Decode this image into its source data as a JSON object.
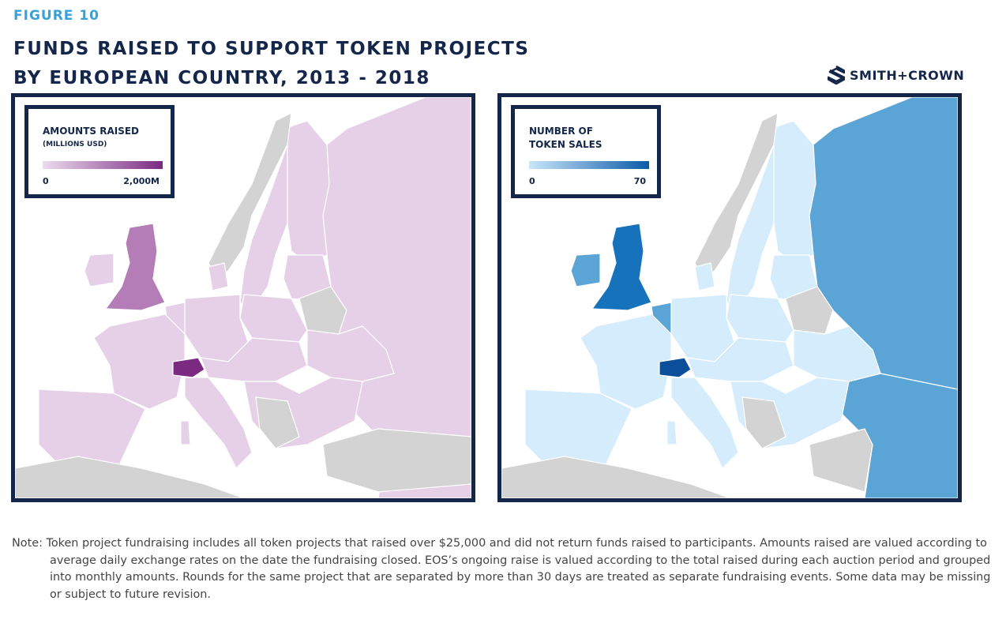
{
  "figure_label": "FIGURE 10",
  "title_line1": "FUNDS RAISED TO SUPPORT TOKEN PROJECTS",
  "title_line2": "BY EUROPEAN COUNTRY, 2013 - 2018",
  "brand": {
    "name": "SMITH+CROWN",
    "icon": "smith-crown-logo-icon"
  },
  "colors": {
    "navy": "#14264a",
    "figure_label": "#3aa0d8",
    "sea": "#ffffff",
    "no_data": "#d3d3d3",
    "purple_low": "#e6d0e8",
    "purple_mid": "#b57db8",
    "purple_high": "#7b2a82",
    "blue_low": "#d4ecfb",
    "blue_mid": "#5aa5d6",
    "blue_high": "#1572bb",
    "blue_max": "#0b4f9a"
  },
  "maps": [
    {
      "id": "amounts",
      "legend": {
        "title": "AMOUNTS RAISED",
        "subtitle": "(MILLIONS USD)",
        "min": "0",
        "max": "2,000M",
        "gradient": [
          "#ecdcee",
          "#7b2a82"
        ]
      },
      "highlights": [
        {
          "country": "Switzerland",
          "level": "high",
          "color": "#7b2a82"
        },
        {
          "country": "United Kingdom",
          "level": "mid",
          "color": "#b57db8"
        }
      ]
    },
    {
      "id": "sales",
      "legend": {
        "title": "NUMBER OF",
        "title2": "TOKEN SALES",
        "min": "0",
        "max": "70",
        "gradient": [
          "#c9e6fa",
          "#0b5aa8"
        ]
      },
      "highlights": [
        {
          "country": "Switzerland",
          "level": "max",
          "color": "#0b4f9a"
        },
        {
          "country": "United Kingdom",
          "level": "high",
          "color": "#1572bb"
        },
        {
          "country": "Russia",
          "level": "mid",
          "color": "#5aa5d6"
        }
      ]
    }
  ],
  "note": "Note: Token project fundraising includes all token projects that raised over $25,000 and did not return funds raised to participants. Amounts raised are valued according to average daily exchange rates on the date the fundraising closed. EOS’s ongoing raise is valued according to the total raised during each auction period and grouped into monthly amounts. Rounds for the same project that are separated by more than 30 days are treated as separate fundraising events. Some data may be missing or subject to future revision."
}
